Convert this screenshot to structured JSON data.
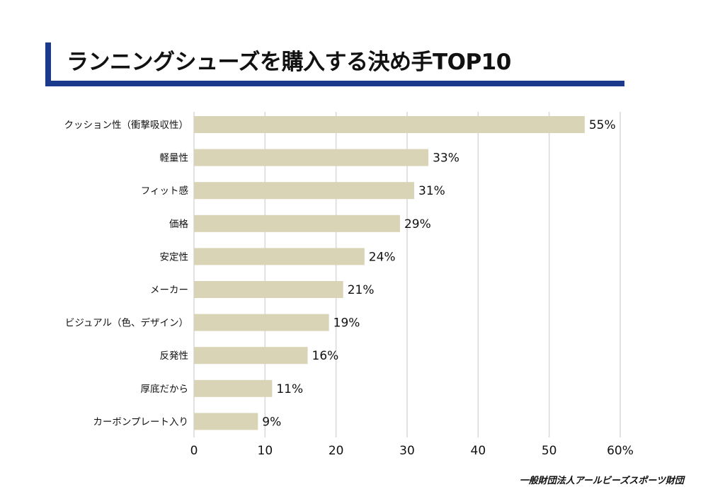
{
  "title": "ランニングシューズを購入する決め手TOP10",
  "source": "一般財団法人アールビーズスポーツ財団",
  "colors": {
    "bar": "#d8d4b5",
    "accent": "#1b3a8c",
    "grid": "#d9d9d9"
  },
  "chart_data": {
    "type": "bar",
    "orientation": "horizontal",
    "categories": [
      "クッション性（衝撃吸収性）",
      "軽量性",
      "フィット感",
      "価格",
      "安定性",
      "メーカー",
      "ビジュアル（色、デザイン）",
      "反発性",
      "厚底だから",
      "カーボンプレート入り"
    ],
    "values": [
      55,
      33,
      31,
      29,
      24,
      21,
      19,
      16,
      11,
      9
    ],
    "data_labels": [
      "55%",
      "33%",
      "31%",
      "29%",
      "24%",
      "21%",
      "19%",
      "16%",
      "11%",
      "9%"
    ],
    "x_ticks": [
      0,
      10,
      20,
      30,
      40,
      50,
      60
    ],
    "x_tick_labels": [
      "0",
      "10",
      "20",
      "30",
      "40",
      "50",
      "60%"
    ],
    "xlim": [
      0,
      60
    ],
    "grid": true
  }
}
